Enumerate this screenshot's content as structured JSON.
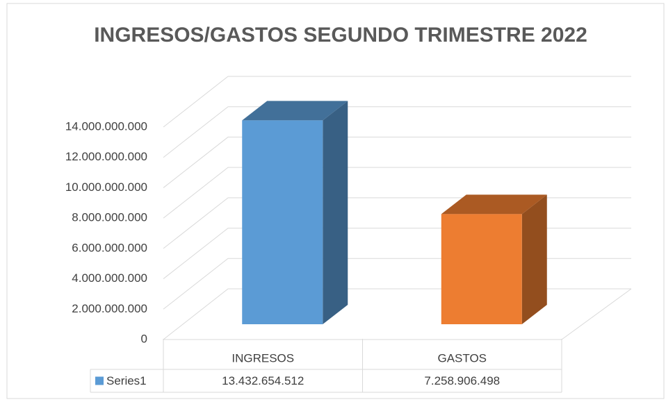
{
  "chart_data": {
    "type": "bar3d",
    "title": "INGRESOS/GASTOS SEGUNDO TRIMESTRE 2022",
    "categories": [
      "INGRESOS",
      "GASTOS"
    ],
    "series": [
      {
        "name": "Series1",
        "color": "#5b9bd5",
        "point_colors": [
          "#5b9bd5",
          "#ed7d31"
        ],
        "values": [
          13432654512,
          7258906498
        ],
        "value_labels": [
          "13.432.654.512",
          "7.258.906.498"
        ]
      }
    ],
    "ylim": [
      0,
      14000000000
    ],
    "yticks": [
      0,
      {
        "value": 2000000000,
        "label": "2.000.000.000"
      },
      {
        "value": 4000000000,
        "label": "4.000.000.000"
      },
      {
        "value": 6000000000,
        "label": "6.000.000.000"
      },
      {
        "value": 8000000000,
        "label": "8.000.000.000"
      },
      {
        "value": 10000000000,
        "label": "10.000.000.000"
      },
      {
        "value": 12000000000,
        "label": "12.000.000.000"
      },
      {
        "value": 14000000000,
        "label": "14.000.000.000"
      }
    ],
    "grid": true
  }
}
